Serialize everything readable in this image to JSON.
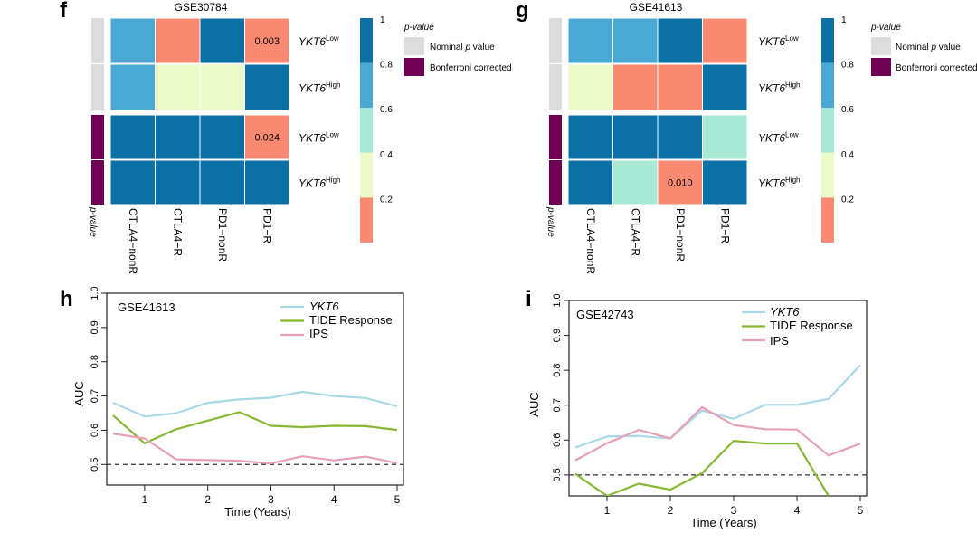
{
  "colors": {
    "v1": "#0a70a6",
    "v08": "#4aa8d3",
    "v06": "#a8e9d6",
    "v04": "#eafbc7",
    "v02": "#fa8a71",
    "nominal": "#dcdcdc",
    "bonferroni": "#6e0053",
    "yk": "#a8d8e6",
    "tide": "#88b833",
    "ips": "#e8a0b4"
  },
  "heatmap_legend": {
    "scale_ticks": [
      "1",
      "0.8",
      "0.6",
      "0.4",
      "0.2"
    ],
    "pvalue_title": "p-value",
    "nominal_label_pre": "Nominal ",
    "nominal_label_p": "p",
    "nominal_label_post": " value",
    "bonferroni_label": "Bonferroni corrected"
  },
  "row_labels": {
    "gene": "YKT6",
    "low": "Low",
    "high": "High"
  },
  "side_label": "p-value",
  "chart_data": [
    {
      "type": "heatmap",
      "panel": "f",
      "title": "GSE30784",
      "columns": [
        "CTLA4−nonR",
        "CTLA4−R",
        "PD1−nonR",
        "PD1−R"
      ],
      "rows": [
        {
          "group": "nominal",
          "label": "YKT6 Low",
          "fill": [
            "v08",
            "v02",
            "v1",
            "v02"
          ],
          "cell_labels": [
            "",
            "",
            "",
            "0.003"
          ]
        },
        {
          "group": "nominal",
          "label": "YKT6 High",
          "fill": [
            "v08",
            "v04",
            "v04",
            "v1"
          ],
          "cell_labels": [
            "",
            "",
            "",
            ""
          ]
        },
        {
          "group": "bonferroni",
          "label": "YKT6 Low",
          "fill": [
            "v1",
            "v1",
            "v1",
            "v02"
          ],
          "cell_labels": [
            "",
            "",
            "",
            "0.024"
          ]
        },
        {
          "group": "bonferroni",
          "label": "YKT6 High",
          "fill": [
            "v1",
            "v1",
            "v1",
            "v1"
          ],
          "cell_labels": [
            "",
            "",
            "",
            ""
          ]
        }
      ]
    },
    {
      "type": "heatmap",
      "panel": "g",
      "title": "GSE41613",
      "columns": [
        "CTLA4−nonR",
        "CTLA4−R",
        "PD1−nonR",
        "PD1−R"
      ],
      "rows": [
        {
          "group": "nominal",
          "label": "YKT6 Low",
          "fill": [
            "v08",
            "v08",
            "v1",
            "v02"
          ],
          "cell_labels": [
            "",
            "",
            "",
            ""
          ]
        },
        {
          "group": "nominal",
          "label": "YKT6 High",
          "fill": [
            "v04",
            "v02",
            "v02",
            "v1"
          ],
          "cell_labels": [
            "",
            "",
            "",
            ""
          ]
        },
        {
          "group": "bonferroni",
          "label": "YKT6 Low",
          "fill": [
            "v1",
            "v1",
            "v1",
            "v06"
          ],
          "cell_labels": [
            "",
            "",
            "",
            ""
          ]
        },
        {
          "group": "bonferroni",
          "label": "YKT6 High",
          "fill": [
            "v1",
            "v06",
            "v02",
            "v1"
          ],
          "cell_labels": [
            "",
            "",
            "0.010",
            ""
          ]
        }
      ]
    },
    {
      "type": "line",
      "panel": "h",
      "title": "GSE41613",
      "xlabel": "Time (Years)",
      "ylabel": "AUC",
      "xlim": [
        0.4,
        5.1
      ],
      "ylim": [
        0.44,
        1.0
      ],
      "x_ticks": [
        1,
        2,
        3,
        4,
        5
      ],
      "y_ticks": [
        0.5,
        0.6,
        0.7,
        0.8,
        0.9,
        1.0
      ],
      "y_tick_labels": [
        "0.5",
        "0.6",
        "0.7",
        "0.8",
        "0.9",
        "1.0"
      ],
      "reference_line": 0.5,
      "x": [
        0.5,
        1,
        1.5,
        2,
        2.5,
        3,
        3.5,
        4,
        4.5,
        5
      ],
      "series": [
        {
          "name": "YKT6",
          "color": "yk",
          "values": [
            0.68,
            0.64,
            0.65,
            0.68,
            0.69,
            0.695,
            0.712,
            0.7,
            0.694,
            0.67
          ]
        },
        {
          "name": "TIDE Response",
          "color": "tide",
          "values": [
            0.643,
            0.562,
            0.603,
            0.628,
            0.653,
            0.613,
            0.609,
            0.613,
            0.612,
            0.601
          ]
        },
        {
          "name": "IPS",
          "color": "ips",
          "values": [
            0.59,
            0.576,
            0.515,
            0.513,
            0.511,
            0.503,
            0.524,
            0.512,
            0.523,
            0.504
          ]
        }
      ]
    },
    {
      "type": "line",
      "panel": "i",
      "title": "GSE42743",
      "xlabel": "Time (Years)",
      "ylabel": "AUC",
      "xlim": [
        0.4,
        5.1
      ],
      "ylim": [
        0.44,
        1.0
      ],
      "x_ticks": [
        1,
        2,
        3,
        4,
        5
      ],
      "y_ticks": [
        0.5,
        0.6,
        0.7,
        0.8,
        0.9,
        1.0
      ],
      "y_tick_labels": [
        "0.5",
        "0.6",
        "0.7",
        "0.8",
        "0.9",
        "1.0"
      ],
      "reference_line": 0.5,
      "x": [
        0.5,
        1,
        1.5,
        2,
        2.5,
        3,
        3.5,
        4,
        4.5,
        5
      ],
      "series": [
        {
          "name": "YKT6",
          "color": "yk",
          "values": [
            0.579,
            0.61,
            0.612,
            0.604,
            0.685,
            0.661,
            0.701,
            0.701,
            0.718,
            0.815
          ]
        },
        {
          "name": "TIDE Response",
          "color": "tide",
          "values": [
            0.503,
            0.44,
            0.475,
            0.458,
            0.505,
            0.598,
            0.59,
            0.59,
            0.44,
            null
          ]
        },
        {
          "name": "IPS",
          "color": "ips",
          "values": [
            0.542,
            0.591,
            0.629,
            0.605,
            0.694,
            0.643,
            0.631,
            0.63,
            0.556,
            0.59
          ]
        }
      ]
    }
  ]
}
